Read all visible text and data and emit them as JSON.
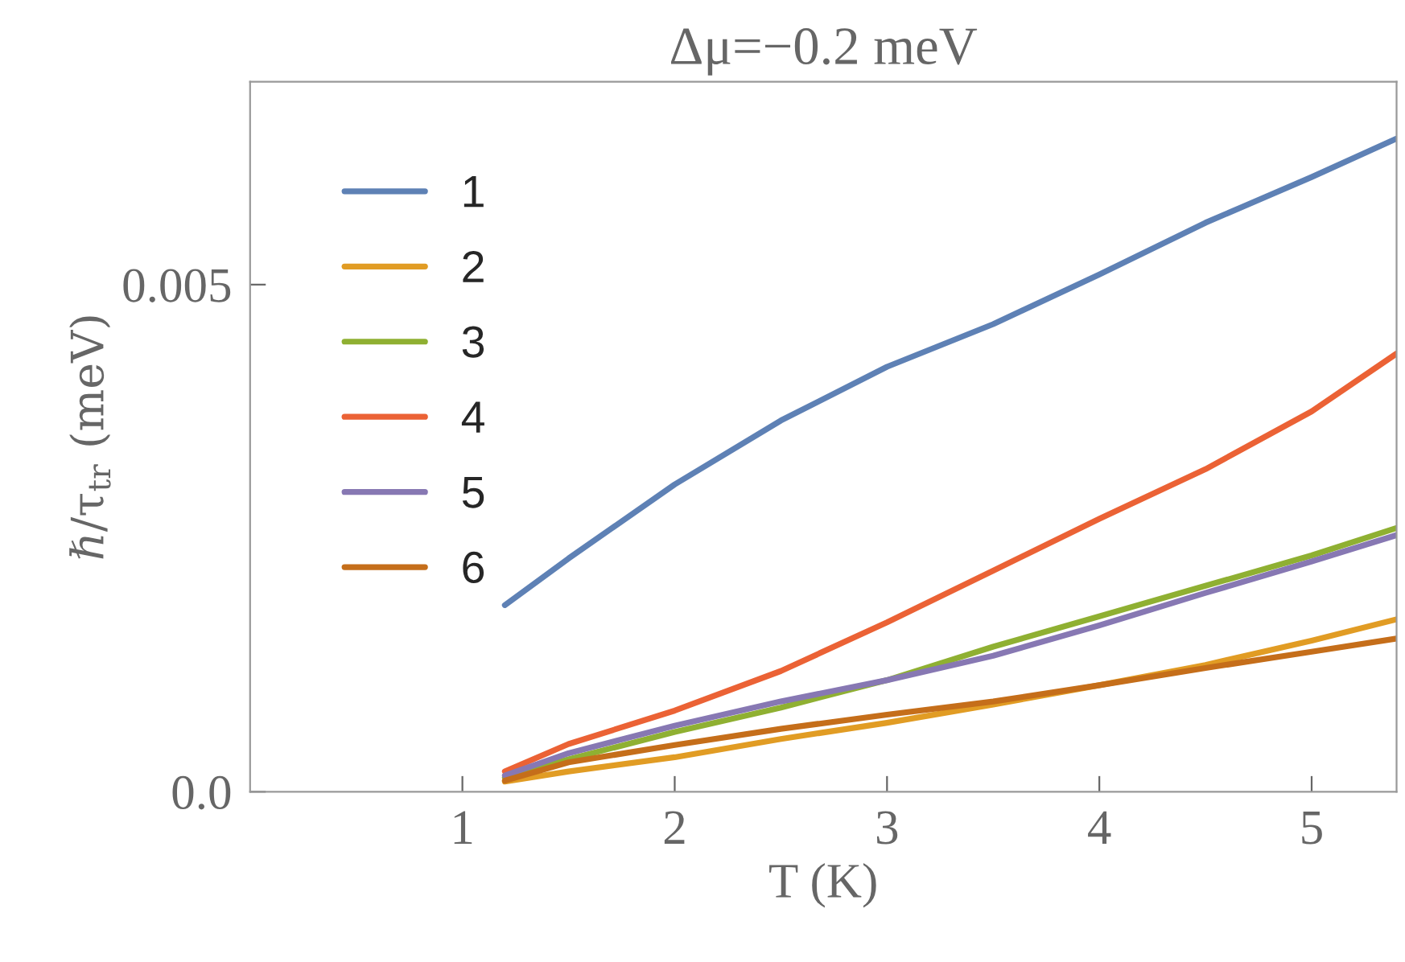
{
  "chart_data": {
    "type": "line",
    "title": "Δμ=−0.2 meV",
    "xlabel": "T (K)",
    "ylabel": "ℏ/τ$_{tr}$ (meV)",
    "x": [
      1.2,
      1.5,
      2,
      2.5,
      3,
      3.5,
      4,
      4.5,
      5,
      5.4
    ],
    "series": [
      {
        "name": "1",
        "color": "#5e81b5",
        "values": [
          0.00184,
          0.0023,
          0.00303,
          0.00366,
          0.00419,
          0.00461,
          0.0051,
          0.00561,
          0.00606,
          0.00644
        ]
      },
      {
        "name": "2",
        "color": "#e19c24",
        "values": [
          0.0001,
          0.0002,
          0.00034,
          0.00052,
          0.00068,
          0.00086,
          0.00105,
          0.00125,
          0.00149,
          0.0017
        ]
      },
      {
        "name": "3",
        "color": "#8fb032",
        "values": [
          0.00014,
          0.00032,
          0.00059,
          0.00083,
          0.0011,
          0.00143,
          0.00173,
          0.00203,
          0.00233,
          0.0026
        ]
      },
      {
        "name": "4",
        "color": "#eb6235",
        "values": [
          0.0002,
          0.00047,
          0.0008,
          0.00119,
          0.00167,
          0.00218,
          0.00269,
          0.00318,
          0.00375,
          0.00432
        ]
      },
      {
        "name": "5",
        "color": "#8778b3",
        "values": [
          0.00016,
          0.00038,
          0.00065,
          0.00089,
          0.0011,
          0.00134,
          0.00164,
          0.00196,
          0.00227,
          0.00253
        ]
      },
      {
        "name": "6",
        "color": "#c56e1a",
        "values": [
          0.00011,
          0.00029,
          0.00046,
          0.00062,
          0.00076,
          0.00089,
          0.00105,
          0.00122,
          0.00138,
          0.00151
        ]
      }
    ],
    "xlim": [
      0,
      5.4
    ],
    "ylim": [
      0,
      0.007
    ],
    "xticks": [
      1,
      2,
      3,
      4,
      5
    ],
    "yticks": [
      {
        "value": 0,
        "label": "0.0"
      },
      0.005
    ],
    "legend": "top left",
    "grid": false,
    "marker": "none",
    "line_style": "solid"
  }
}
